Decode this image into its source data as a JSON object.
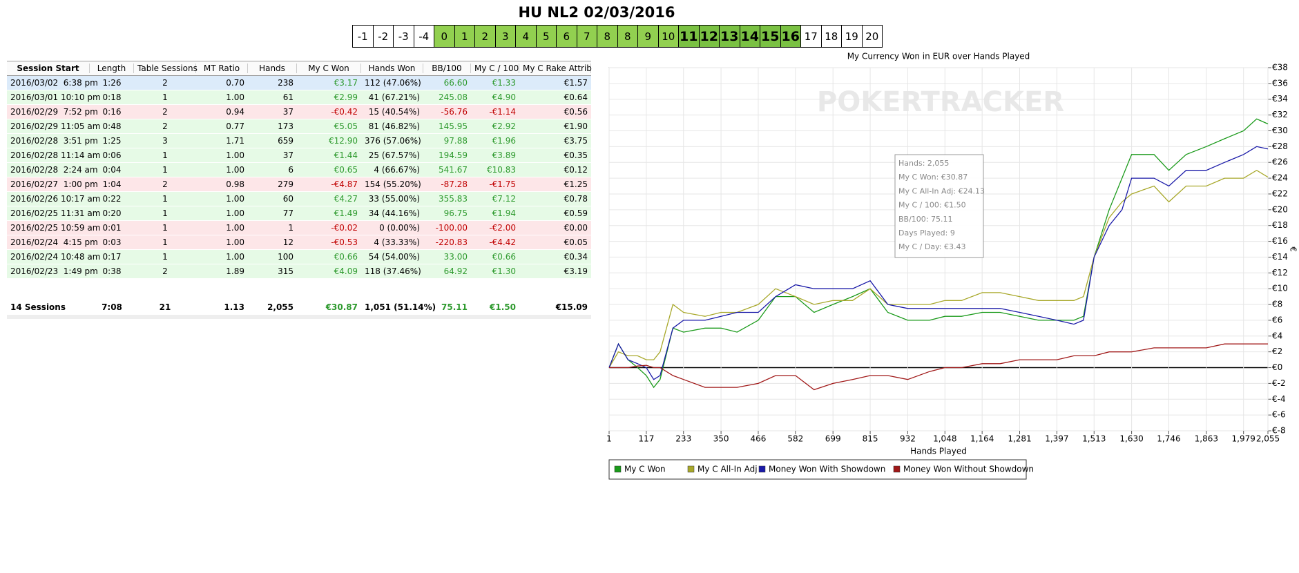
{
  "header": {
    "title": "HU NL2 02/03/2016",
    "cells": [
      {
        "label": "-1"
      },
      {
        "label": "-2"
      },
      {
        "label": "-3"
      },
      {
        "label": "-4"
      },
      {
        "label": "0",
        "color": "#92d050"
      },
      {
        "label": "1",
        "color": "#92d050"
      },
      {
        "label": "2",
        "color": "#92d050"
      },
      {
        "label": "3",
        "color": "#92d050"
      },
      {
        "label": "4",
        "color": "#92d050"
      },
      {
        "label": "5",
        "color": "#92d050"
      },
      {
        "label": "6",
        "color": "#92d050"
      },
      {
        "label": "7",
        "color": "#92d050"
      },
      {
        "label": "8",
        "color": "#92d050"
      },
      {
        "label": "8",
        "color": "#92d050"
      },
      {
        "label": "9",
        "color": "#92d050"
      },
      {
        "label": "10",
        "color": "#92d050"
      },
      {
        "label": "11",
        "color": "#7ac143",
        "bold": true
      },
      {
        "label": "12",
        "color": "#7ac143",
        "bold": true
      },
      {
        "label": "13",
        "color": "#7ac143",
        "bold": true
      },
      {
        "label": "14",
        "color": "#7ac143",
        "bold": true
      },
      {
        "label": "15",
        "color": "#7ac143",
        "bold": true
      },
      {
        "label": "16",
        "color": "#7ac143",
        "bold": true
      },
      {
        "label": "17"
      },
      {
        "label": "18"
      },
      {
        "label": "19"
      },
      {
        "label": "20"
      }
    ]
  },
  "table": {
    "columns": [
      "Session Start",
      "Length",
      "Table Sessions",
      "MT Ratio",
      "Hands",
      "My C Won",
      "Hands Won",
      "BB/100",
      "My C / 100",
      "My C Rake Attrib"
    ],
    "rows": [
      [
        "2016/03/02  6:38 pm",
        "1:26",
        "2",
        "0.70",
        "238",
        "€3.17",
        "112 (47.06%)",
        "66.60",
        "€1.33",
        "€1.57"
      ],
      [
        "2016/03/01 10:10 pm",
        "0:18",
        "1",
        "1.00",
        "61",
        "€2.99",
        "41 (67.21%)",
        "245.08",
        "€4.90",
        "€0.64"
      ],
      [
        "2016/02/29  7:52 pm",
        "0:16",
        "2",
        "0.94",
        "37",
        "-€0.42",
        "15 (40.54%)",
        "-56.76",
        "-€1.14",
        "€0.56"
      ],
      [
        "2016/02/29 11:05 am",
        "0:48",
        "2",
        "0.77",
        "173",
        "€5.05",
        "81 (46.82%)",
        "145.95",
        "€2.92",
        "€1.90"
      ],
      [
        "2016/02/28  3:51 pm",
        "1:25",
        "3",
        "1.71",
        "659",
        "€12.90",
        "376 (57.06%)",
        "97.88",
        "€1.96",
        "€3.75"
      ],
      [
        "2016/02/28 11:14 am",
        "0:06",
        "1",
        "1.00",
        "37",
        "€1.44",
        "25 (67.57%)",
        "194.59",
        "€3.89",
        "€0.35"
      ],
      [
        "2016/02/28  2:24 am",
        "0:04",
        "1",
        "1.00",
        "6",
        "€0.65",
        "4 (66.67%)",
        "541.67",
        "€10.83",
        "€0.12"
      ],
      [
        "2016/02/27  1:00 pm",
        "1:04",
        "2",
        "0.98",
        "279",
        "-€4.87",
        "154 (55.20%)",
        "-87.28",
        "-€1.75",
        "€1.25"
      ],
      [
        "2016/02/26 10:17 am",
        "0:22",
        "1",
        "1.00",
        "60",
        "€4.27",
        "33 (55.00%)",
        "355.83",
        "€7.12",
        "€0.78"
      ],
      [
        "2016/02/25 11:31 am",
        "0:20",
        "1",
        "1.00",
        "77",
        "€1.49",
        "34 (44.16%)",
        "96.75",
        "€1.94",
        "€0.59"
      ],
      [
        "2016/02/25 10:59 am",
        "0:01",
        "1",
        "1.00",
        "1",
        "-€0.02",
        "0 (0.00%)",
        "-100.00",
        "-€2.00",
        "€0.00"
      ],
      [
        "2016/02/24  4:15 pm",
        "0:03",
        "1",
        "1.00",
        "12",
        "-€0.53",
        "4 (33.33%)",
        "-220.83",
        "-€4.42",
        "€0.05"
      ],
      [
        "2016/02/24 10:48 am",
        "0:17",
        "1",
        "1.00",
        "100",
        "€0.66",
        "54 (54.00%)",
        "33.00",
        "€0.66",
        "€0.34"
      ],
      [
        "2016/02/23  1:49 pm",
        "0:38",
        "2",
        "1.89",
        "315",
        "€4.09",
        "118 (37.46%)",
        "64.92",
        "€1.30",
        "€3.19"
      ]
    ],
    "row_colors": [
      "#dcebfa",
      "#e6fae6",
      "#fde6e8",
      "#e6fae6",
      "#e6fae6",
      "#e6fae6",
      "#e6fae6",
      "#fde6e8",
      "#e6fae6",
      "#e6fae6",
      "#fde6e8",
      "#fde6e8",
      "#e6fae6",
      "#e6fae6"
    ],
    "row_text_colors": [
      "#2e9a2e",
      "#2e9a2e",
      "#c00000",
      "#2e9a2e",
      "#2e9a2e",
      "#2e9a2e",
      "#2e9a2e",
      "#c00000",
      "#2e9a2e",
      "#2e9a2e",
      "#c00000",
      "#c00000",
      "#2e9a2e",
      "#2e9a2e"
    ],
    "totals": [
      "14 Sessions",
      "7:08",
      "21",
      "1.13",
      "2,055",
      "€30.87",
      "1,051 (51.14%)",
      "75.11",
      "€1.50",
      "€15.09"
    ],
    "totals_text_color": "#2e9a2e"
  },
  "chart_data": {
    "type": "line",
    "title": "My Currency Won in EUR over Hands Played",
    "xlabel": "Hands Played",
    "ylabel": "€",
    "watermark": "POKERTRACKER",
    "grid": true,
    "x": [
      1,
      30,
      60,
      90,
      117,
      140,
      160,
      200,
      233,
      300,
      350,
      400,
      466,
      520,
      582,
      640,
      699,
      760,
      815,
      870,
      932,
      1000,
      1048,
      1100,
      1164,
      1220,
      1281,
      1340,
      1397,
      1450,
      1480,
      1513,
      1560,
      1600,
      1630,
      1700,
      1746,
      1800,
      1863,
      1920,
      1979,
      2020,
      2055
    ],
    "series": [
      {
        "name": "My C Won",
        "color": "#1a9a1a",
        "values": [
          0,
          3,
          1,
          0,
          -1,
          -2.5,
          -1.5,
          5,
          4.5,
          5,
          5,
          4.5,
          6,
          9,
          9,
          7,
          8,
          9,
          10,
          7,
          6,
          6,
          6.5,
          6.5,
          7,
          7,
          6.5,
          6,
          6,
          6,
          6.5,
          14,
          20,
          24,
          27,
          27,
          25,
          27,
          28,
          29,
          30,
          31.5,
          30.87
        ]
      },
      {
        "name": "My C All-In Adj",
        "color": "#a8a82a",
        "values": [
          0,
          2,
          1.5,
          1.5,
          1,
          1,
          2,
          8,
          7,
          6.5,
          7,
          7,
          8,
          10,
          9,
          8,
          8.5,
          8.5,
          10,
          8,
          8,
          8,
          8.5,
          8.5,
          9.5,
          9.5,
          9,
          8.5,
          8.5,
          8.5,
          9,
          14,
          19,
          21,
          22,
          23,
          21,
          23,
          23,
          24,
          24,
          25,
          24.13
        ]
      },
      {
        "name": "Money Won With Showdown",
        "color": "#1a1aa8",
        "values": [
          0,
          3,
          1,
          0.5,
          0,
          -1.5,
          -1,
          5,
          6,
          6,
          6.5,
          7,
          7,
          9,
          10.5,
          10,
          10,
          10,
          11,
          8,
          7.5,
          7.5,
          7.5,
          7.5,
          7.5,
          7.5,
          7,
          6.5,
          6,
          5.5,
          6,
          14,
          18,
          20,
          24,
          24,
          23,
          25,
          25,
          26,
          27,
          28,
          27.7
        ]
      },
      {
        "name": "Money Won Without Showdown",
        "color": "#a01818",
        "values": [
          0,
          0,
          0,
          0.2,
          0.3,
          0,
          0,
          -1,
          -1.5,
          -2.5,
          -2.5,
          -2.5,
          -2,
          -1,
          -1,
          -2.8,
          -2,
          -1.5,
          -1,
          -1,
          -1.5,
          -0.5,
          0,
          0,
          0.5,
          0.5,
          1,
          1,
          1,
          1.5,
          1.5,
          1.5,
          2,
          2,
          2,
          2.5,
          2.5,
          2.5,
          2.5,
          3,
          3,
          3,
          3
        ]
      }
    ],
    "xlim": [
      1,
      2055
    ],
    "xticks": [
      1,
      117,
      233,
      350,
      466,
      582,
      699,
      815,
      932,
      {
        "value": 1048,
        "label": "1,048"
      },
      {
        "value": 1164,
        "label": "1,164"
      },
      {
        "value": 1281,
        "label": "1,281"
      },
      {
        "value": 1397,
        "label": "1,397"
      },
      {
        "value": 1513,
        "label": "1,513"
      },
      {
        "value": 1630,
        "label": "1,630"
      },
      {
        "value": 1746,
        "label": "1,746"
      },
      {
        "value": 1863,
        "label": "1,863"
      },
      {
        "value": 1979,
        "label": "1,979"
      },
      {
        "value": 2055,
        "label": "2,055"
      }
    ],
    "ylim": [
      -8,
      38
    ],
    "yticks": [
      {
        "value": -8,
        "label": "€-8"
      },
      {
        "value": -6,
        "label": "€-6"
      },
      {
        "value": -4,
        "label": "€-4"
      },
      {
        "value": -2,
        "label": "€-2"
      },
      {
        "value": 0,
        "label": "€0"
      },
      {
        "value": 2,
        "label": "€2"
      },
      {
        "value": 4,
        "label": "€4"
      },
      {
        "value": 6,
        "label": "€6"
      },
      {
        "value": 8,
        "label": "€8"
      },
      {
        "value": 10,
        "label": "€10"
      },
      {
        "value": 12,
        "label": "€12"
      },
      {
        "value": 14,
        "label": "€14"
      },
      {
        "value": 16,
        "label": "€16"
      },
      {
        "value": 18,
        "label": "€18"
      },
      {
        "value": 20,
        "label": "€20"
      },
      {
        "value": 22,
        "label": "€22"
      },
      {
        "value": 24,
        "label": "€24"
      },
      {
        "value": 26,
        "label": "€26"
      },
      {
        "value": 28,
        "label": "€28"
      },
      {
        "value": 30,
        "label": "€30"
      },
      {
        "value": 32,
        "label": "€32"
      },
      {
        "value": 34,
        "label": "€34"
      },
      {
        "value": 36,
        "label": "€36"
      },
      {
        "value": 38,
        "label": "€38"
      }
    ],
    "tooltip": [
      "Hands: 2,055",
      "My C Won: €30.87",
      "My C All-In Adj: €24.13",
      "My C / 100: €1.50",
      "BB/100: 75.11",
      "Days Played: 9",
      "My C / Day: €3.43"
    ]
  }
}
